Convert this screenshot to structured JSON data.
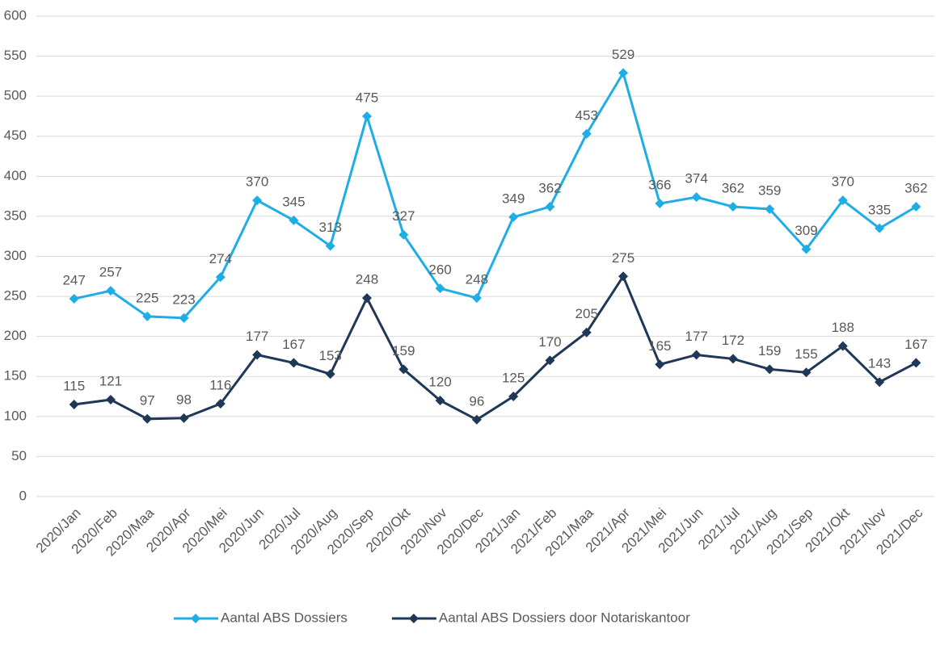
{
  "chart_data": {
    "type": "line",
    "categories": [
      "2020/Jan",
      "2020/Feb",
      "2020/Maa",
      "2020/Apr",
      "2020/Mei",
      "2020/Jun",
      "2020/Jul",
      "2020/Aug",
      "2020/Sep",
      "2020/Okt",
      "2020/Nov",
      "2020/Dec",
      "2021/Jan",
      "2021/Feb",
      "2021/Maa",
      "2021/Apr",
      "2021/Mei",
      "2021/Jun",
      "2021/Jul",
      "2021/Aug",
      "2021/Sep",
      "2021/Okt",
      "2021/Nov",
      "2021/Dec"
    ],
    "series": [
      {
        "name": "Aantal ABS Dossiers",
        "color": "#1fade6",
        "values": [
          247,
          257,
          225,
          223,
          274,
          370,
          345,
          313,
          475,
          327,
          260,
          248,
          349,
          362,
          453,
          529,
          366,
          374,
          362,
          359,
          309,
          370,
          335,
          362
        ]
      },
      {
        "name": "Aantal ABS Dossiers door Notariskantoor",
        "color": "#1f3857",
        "values": [
          115,
          121,
          97,
          98,
          116,
          177,
          167,
          153,
          248,
          159,
          120,
          96,
          125,
          170,
          205,
          275,
          165,
          177,
          172,
          159,
          155,
          188,
          143,
          167
        ]
      }
    ],
    "ylim": [
      0,
      600
    ],
    "yticks": [
      0,
      50,
      100,
      150,
      200,
      250,
      300,
      350,
      400,
      450,
      500,
      550,
      600
    ],
    "grid": true,
    "legend": "bottom"
  }
}
